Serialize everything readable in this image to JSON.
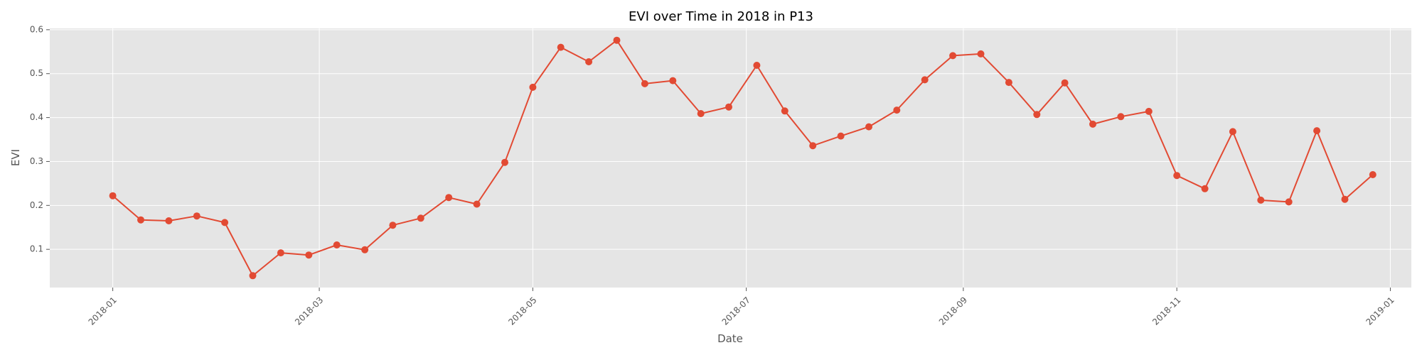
{
  "chart_data": {
    "type": "line",
    "title": "EVI over Time in 2018 in P13",
    "xlabel": "Date",
    "ylabel": "EVI",
    "grid": true,
    "x_ticks": [
      "2018-01-01",
      "2018-03-01",
      "2018-05-01",
      "2018-07-01",
      "2018-09-01",
      "2018-11-01",
      "2019-01-01"
    ],
    "x_tick_labels": [
      "2018-01",
      "2018-03",
      "2018-05",
      "2018-07",
      "2018-09",
      "2018-11",
      "2019-01"
    ],
    "y_ticks": [
      0.1,
      0.2,
      0.3,
      0.4,
      0.5,
      0.6
    ],
    "y_tick_labels": [
      "0.1",
      "0.2",
      "0.3",
      "0.4",
      "0.5",
      "0.6"
    ],
    "xlim": [
      "2017-12-14",
      "2019-01-07"
    ],
    "ylim": [
      0.013,
      0.603
    ],
    "colors": {
      "series": "#E24A33",
      "plot_background": "#E5E5E5"
    },
    "series": [
      {
        "x": [
          "2018-01-01",
          "2018-01-09",
          "2018-01-17",
          "2018-01-25",
          "2018-02-02",
          "2018-02-10",
          "2018-02-18",
          "2018-02-26",
          "2018-03-06",
          "2018-03-14",
          "2018-03-22",
          "2018-03-30",
          "2018-04-07",
          "2018-04-15",
          "2018-04-23",
          "2018-05-01",
          "2018-05-09",
          "2018-05-17",
          "2018-05-25",
          "2018-06-02",
          "2018-06-10",
          "2018-06-18",
          "2018-06-26",
          "2018-07-04",
          "2018-07-12",
          "2018-07-20",
          "2018-07-28",
          "2018-08-05",
          "2018-08-13",
          "2018-08-21",
          "2018-08-29",
          "2018-09-06",
          "2018-09-14",
          "2018-09-22",
          "2018-09-30",
          "2018-10-08",
          "2018-10-16",
          "2018-10-24",
          "2018-11-01",
          "2018-11-09",
          "2018-11-17",
          "2018-11-25",
          "2018-12-03",
          "2018-12-11",
          "2018-12-19",
          "2018-12-27"
        ],
        "values": [
          0.222,
          0.167,
          0.165,
          0.176,
          0.161,
          0.04,
          0.092,
          0.087,
          0.11,
          0.099,
          0.155,
          0.171,
          0.218,
          0.203,
          0.298,
          0.469,
          0.56,
          0.527,
          0.576,
          0.477,
          0.484,
          0.409,
          0.424,
          0.519,
          0.415,
          0.336,
          0.358,
          0.379,
          0.417,
          0.486,
          0.541,
          0.545,
          0.48,
          0.407,
          0.479,
          0.385,
          0.402,
          0.414,
          0.268,
          0.238,
          0.368,
          0.212,
          0.208,
          0.37,
          0.214,
          0.27
        ]
      }
    ]
  }
}
